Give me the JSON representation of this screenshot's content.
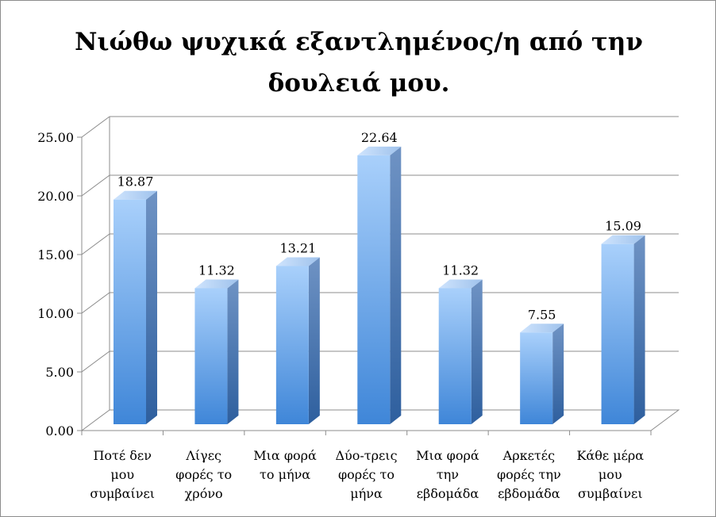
{
  "chart_data": {
    "type": "bar",
    "title_lines": [
      "Νιώθω ψυχικά εξαντλημένος/η από την",
      "δουλειά μου."
    ],
    "categories": [
      [
        "Ποτέ δεν",
        "μου",
        "συμβαίνει"
      ],
      [
        "Λίγες",
        "φορές το",
        "χρόνο"
      ],
      [
        "Μια φορά",
        "το μήνα"
      ],
      [
        "Δύο-τρεις",
        "φορές το",
        "μήνα"
      ],
      [
        "Μια φορά",
        "την",
        "εβδομάδα"
      ],
      [
        "Αρκετές",
        "φορές την",
        "εβδομάδα"
      ],
      [
        "Κάθε μέρα",
        "μου",
        "συμβαίνει"
      ]
    ],
    "values": [
      18.87,
      11.32,
      13.21,
      22.64,
      11.32,
      7.55,
      15.09
    ],
    "value_labels": [
      "18.87",
      "11.32",
      "13.21",
      "22.64",
      "11.32",
      "7.55",
      "15.09"
    ],
    "yticks": [
      "0.00",
      "5.00",
      "10.00",
      "15.00",
      "20.00",
      "25.00"
    ],
    "ylim": [
      0,
      25
    ],
    "grid": true,
    "style": "3d-column",
    "bar_color": "#5b9bd5"
  }
}
